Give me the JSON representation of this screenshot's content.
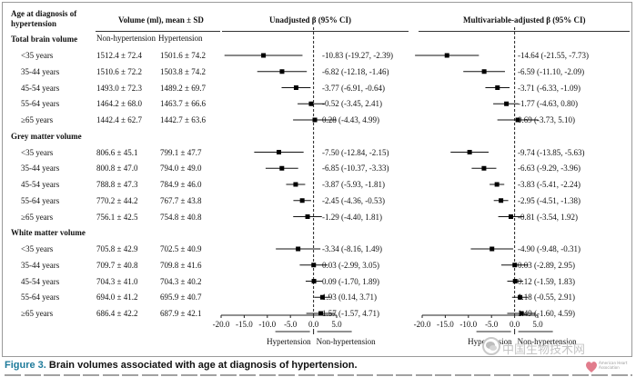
{
  "header": {
    "col_age": "Age at diagnosis of hypertension",
    "col_volume": "Volume (ml), mean ± SD",
    "sub_nonhyp": "Non-hypertension",
    "sub_hyp": "Hypertension",
    "col_unadj": "Unadjusted β (95% CI)",
    "col_multi": "Multivariable-adjusted β (95% CI)"
  },
  "groups": [
    {
      "title": "Total brain volume",
      "rows": [
        {
          "age": "<35 years",
          "nonhyp": "1512.4 ± 72.4",
          "hyp": "1501.6 ± 74.2",
          "unadj_text": "-10.83 (-19.27, -2.39)",
          "u": [
            -10.83,
            -19.27,
            -2.39
          ],
          "multi_text": "-14.64 (-21.55, -7.73)",
          "m": [
            -14.64,
            -21.55,
            -7.73
          ]
        },
        {
          "age": "35-44 years",
          "nonhyp": "1510.6 ± 72.2",
          "hyp": "1503.8 ± 74.2",
          "unadj_text": "-6.82 (-12.18, -1.46)",
          "u": [
            -6.82,
            -12.18,
            -1.46
          ],
          "multi_text": "-6.59 (-11.10, -2.09)",
          "m": [
            -6.59,
            -11.1,
            -2.09
          ]
        },
        {
          "age": "45-54 years",
          "nonhyp": "1493.0 ± 72.3",
          "hyp": "1489.2 ± 69.7",
          "unadj_text": "-3.77 (-6.91, -0.64)",
          "u": [
            -3.77,
            -6.91,
            -0.64
          ],
          "multi_text": "-3.71 (-6.33, -1.09)",
          "m": [
            -3.71,
            -6.33,
            -1.09
          ]
        },
        {
          "age": "55-64 years",
          "nonhyp": "1464.2 ± 68.0",
          "hyp": "1463.7 ± 66.6",
          "unadj_text": "-0.52 (-3.45, 2.41)",
          "u": [
            -0.52,
            -3.45,
            2.41
          ],
          "multi_text": "-1.77 (-4.63, 0.80)",
          "m": [
            -1.77,
            -4.63,
            0.8
          ]
        },
        {
          "age": "≥65 years",
          "nonhyp": "1442.4 ± 62.7",
          "hyp": "1442.7 ± 63.6",
          "unadj_text": "0.28 (-4.43, 4.99)",
          "u": [
            0.28,
            -4.43,
            4.99
          ],
          "multi_text": "0.69 (-3.73, 5.10)",
          "m": [
            0.69,
            -3.73,
            5.1
          ]
        }
      ]
    },
    {
      "title": "Grey matter volume",
      "rows": [
        {
          "age": "<35 years",
          "nonhyp": "806.6 ± 45.1",
          "hyp": "799.1 ± 47.7",
          "unadj_text": "-7.50 (-12.84, -2.15)",
          "u": [
            -7.5,
            -12.84,
            -2.15
          ],
          "multi_text": "-9.74 (-13.85, -5.63)",
          "m": [
            -9.74,
            -13.85,
            -5.63
          ]
        },
        {
          "age": "35-44 years",
          "nonhyp": "800.8 ± 47.0",
          "hyp": "794.0 ± 49.0",
          "unadj_text": "-6.85 (-10.37, -3.33)",
          "u": [
            -6.85,
            -10.37,
            -3.33
          ],
          "multi_text": "-6.63 (-9.29, -3.96)",
          "m": [
            -6.63,
            -9.29,
            -3.96
          ]
        },
        {
          "age": "45-54 years",
          "nonhyp": "788.8 ± 47.3",
          "hyp": "784.9 ± 46.0",
          "unadj_text": "-3.87 (-5.93, -1.81)",
          "u": [
            -3.87,
            -5.93,
            -1.81
          ],
          "multi_text": "-3.83 (-5.41, -2.24)",
          "m": [
            -3.83,
            -5.41,
            -2.24
          ]
        },
        {
          "age": "55-64 years",
          "nonhyp": "770.2 ± 44.2",
          "hyp": "767.7 ± 43.8",
          "unadj_text": "-2.45 (-4.36, -0.53)",
          "u": [
            -2.45,
            -4.36,
            -0.53
          ],
          "multi_text": "-2.95 (-4.51, -1.38)",
          "m": [
            -2.95,
            -4.51,
            -1.38
          ]
        },
        {
          "age": "≥65 years",
          "nonhyp": "756.1 ± 42.5",
          "hyp": "754.8 ± 40.8",
          "unadj_text": "-1.29 (-4.40, 1.81)",
          "u": [
            -1.29,
            -4.4,
            1.81
          ],
          "multi_text": "-0.81 (-3.54, 1.92)",
          "m": [
            -0.81,
            -3.54,
            1.92
          ]
        }
      ]
    },
    {
      "title": "White matter volume",
      "rows": [
        {
          "age": "<35 years",
          "nonhyp": "705.8 ± 42.9",
          "hyp": "702.5 ± 40.9",
          "unadj_text": "-3.34 (-8.16, 1.49)",
          "u": [
            -3.34,
            -8.16,
            1.49
          ],
          "multi_text": "-4.90 (-9.48, -0.31)",
          "m": [
            -4.9,
            -9.48,
            -0.31
          ]
        },
        {
          "age": "35-44 years",
          "nonhyp": "709.7 ± 40.8",
          "hyp": "709.8 ± 41.6",
          "unadj_text": "0.03 (-2.99, 3.05)",
          "u": [
            0.03,
            -2.99,
            3.05
          ],
          "multi_text": "0.03 (-2.89, 2.95)",
          "m": [
            0.03,
            -2.89,
            2.95
          ]
        },
        {
          "age": "45-54 years",
          "nonhyp": "704.3 ± 41.0",
          "hyp": "704.3 ± 40.2",
          "unadj_text": "0.09 (-1.70, 1.89)",
          "u": [
            0.09,
            -1.7,
            1.89
          ],
          "multi_text": "0.12 (-1.59, 1.83)",
          "m": [
            0.12,
            -1.59,
            1.83
          ]
        },
        {
          "age": "55-64 years",
          "nonhyp": "694.0 ± 41.2",
          "hyp": "695.9 ± 40.7",
          "unadj_text": "1.93 (0.14, 3.71)",
          "u": [
            1.93,
            0.14,
            3.71
          ],
          "multi_text": "1.18 (-0.55, 2.91)",
          "m": [
            1.18,
            -0.55,
            2.91
          ]
        },
        {
          "age": "≥65 years",
          "nonhyp": "686.4 ± 42.2",
          "hyp": "687.9 ± 42.1",
          "unadj_text": "1.57 (-1.57, 4.71)",
          "u": [
            1.57,
            -1.57,
            4.71
          ],
          "multi_text": "1.49 (-1.60, 4.59)",
          "m": [
            1.49,
            -1.6,
            4.59
          ]
        }
      ]
    }
  ],
  "chart_data": [
    {
      "type": "scatter",
      "title": "Unadjusted β (95% CI)",
      "xlim": [
        -20.0,
        5.0
      ],
      "xticks": [
        "-20.0",
        "-15.0",
        "-10.0",
        "-5.0",
        "0.0",
        "5.0"
      ],
      "reference_line": 0,
      "xlabel_left": "Hypertension",
      "xlabel_right": "Non-hypertension"
    },
    {
      "type": "scatter",
      "title": "Multivariable-adjusted β (95% CI)",
      "xlim": [
        -20.0,
        5.0
      ],
      "xticks": [
        "-20.0",
        "-15.0",
        "-10.0",
        "-5.0",
        "0.0",
        "5.0"
      ],
      "reference_line": 0,
      "xlabel_left": "Hypertension",
      "xlabel_right": "Non-hypertension"
    }
  ],
  "caption": {
    "label": "Figure 3.",
    "text": "Brain volumes associated with age at diagnosis of hypertension."
  },
  "watermark": {
    "text": "中国生物技术网",
    "logo_text": "American Heart Association"
  }
}
